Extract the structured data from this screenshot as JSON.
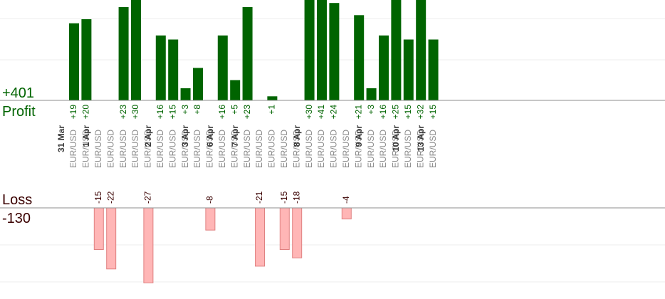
{
  "chart_data": {
    "type": "bar",
    "profit": {
      "label": "Profit",
      "total": "+401",
      "color": "#006400"
    },
    "loss": {
      "label": "Loss",
      "total": "-130",
      "color": "#ffb6b6"
    },
    "pair": "EUR/USD",
    "trades": [
      {
        "value": 19,
        "date": "31 Mar"
      },
      {
        "value": 20
      },
      {
        "value": -15,
        "date": "1 Apr"
      },
      {
        "value": -22
      },
      {
        "value": 23
      },
      {
        "value": 30
      },
      {
        "value": -27
      },
      {
        "value": 16,
        "date": "2 Apr"
      },
      {
        "value": 15
      },
      {
        "value": 3
      },
      {
        "value": 8,
        "date": "3 Apr"
      },
      {
        "value": -8
      },
      {
        "value": 16,
        "date": "6 Apr"
      },
      {
        "value": 5
      },
      {
        "value": 23,
        "date": "7 Apr"
      },
      {
        "value": -21
      },
      {
        "value": 1
      },
      {
        "value": -15
      },
      {
        "value": -18
      },
      {
        "value": 30,
        "date": "8 Apr"
      },
      {
        "value": 41
      },
      {
        "value": 24
      },
      {
        "value": -4
      },
      {
        "value": 21
      },
      {
        "value": 3,
        "date": "9 Apr"
      },
      {
        "value": 16
      },
      {
        "value": 25
      },
      {
        "value": 15,
        "date": "10 Apr"
      },
      {
        "value": 32
      },
      {
        "value": 15,
        "date": "13 Apr"
      }
    ]
  }
}
